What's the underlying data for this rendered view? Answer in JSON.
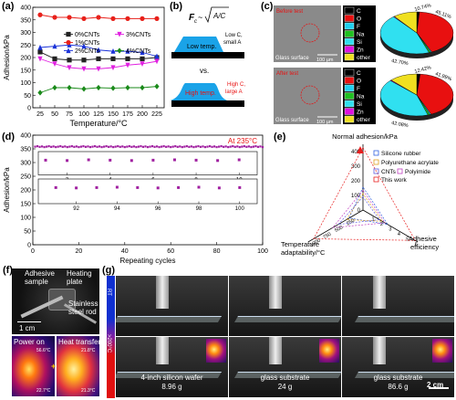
{
  "panels": {
    "a": "(a)",
    "b": "(b)",
    "c": "(c)",
    "d": "(d)",
    "e": "(e)",
    "f": "(f)",
    "g": "(g)"
  },
  "chart_a": {
    "type": "line",
    "ylabel": "Adhesion/kPa",
    "xlabel": "Temperature/°C",
    "x": [
      25,
      50,
      75,
      100,
      125,
      150,
      175,
      200,
      225
    ],
    "xticks": [
      "25",
      "50",
      "75",
      "100",
      "125",
      "150",
      "175",
      "200",
      "225"
    ],
    "ylim": [
      0,
      400
    ],
    "yticks": [
      "0",
      "50",
      "100",
      "150",
      "200",
      "250",
      "300",
      "350",
      "400"
    ],
    "series": [
      {
        "name": "0%CNTs",
        "color": "#222222",
        "marker": "square",
        "values": [
          222,
          195,
          190,
          190,
          195,
          195,
          195,
          195,
          200
        ]
      },
      {
        "name": "1%CNTs",
        "color": "#e8201a",
        "marker": "circle",
        "values": [
          370,
          360,
          360,
          355,
          360,
          355,
          355,
          355,
          355
        ]
      },
      {
        "name": "2%CNTs",
        "color": "#1a32d8",
        "marker": "triangle",
        "values": [
          240,
          245,
          250,
          245,
          230,
          225,
          225,
          220,
          205
        ]
      },
      {
        "name": "3%CNTs",
        "color": "#e020e0",
        "marker": "triangle-down",
        "values": [
          195,
          175,
          160,
          155,
          155,
          160,
          170,
          175,
          185
        ]
      },
      {
        "name": "4%CNTs",
        "color": "#1a8a1a",
        "marker": "diamond",
        "values": [
          60,
          80,
          80,
          75,
          80,
          78,
          80,
          80,
          85
        ]
      }
    ]
  },
  "panel_b": {
    "formula_f": "F",
    "formula_sub": "c",
    "formula_root": "A/C",
    "low": "Low temp.",
    "low_note_1": "Low C,",
    "low_note_2": "small A",
    "vs": "vs.",
    "high": "High temp.",
    "high_note_1": "High C,",
    "high_note_2": "large A"
  },
  "panel_c": {
    "top_label": "Before test",
    "bottom_label": "After test",
    "surface": "Glass surface",
    "scale": "100 µm",
    "legend": [
      {
        "name": "C",
        "color": "#000000"
      },
      {
        "name": "O",
        "color": "#e81010"
      },
      {
        "name": "F",
        "color": "#20d0f0"
      },
      {
        "name": "Na",
        "color": "#20c020"
      },
      {
        "name": "Si",
        "color": "#30e0f0"
      },
      {
        "name": "Zn",
        "color": "#e010e0"
      },
      {
        "name": "other",
        "color": "#f0e020"
      }
    ],
    "top_pie": {
      "values": [
        1.2,
        42.7,
        0.5,
        0.8,
        45.11,
        0.4,
        10.74
      ]
    },
    "bottom_pie": {
      "values": [
        1.5,
        42.08,
        0.6,
        0.9,
        41.99,
        0.5,
        12.42
      ]
    },
    "top_pct_a": "10.74%",
    "top_pct_b": "45.11%",
    "top_pct_c": "42.70%",
    "bottom_pct_a": "12.42%",
    "bottom_pct_b": "41.99%",
    "bottom_pct_c": "42.08%"
  },
  "chart_d": {
    "type": "scatter",
    "ylabel": "Adhesion/kPa",
    "xlabel": "Repeating cycles",
    "annotation": "At 235°C",
    "x_range": [
      0,
      100
    ],
    "xticks": [
      "0",
      "20",
      "40",
      "60",
      "80",
      "100"
    ],
    "ylim": [
      0,
      400
    ],
    "yticks": [
      "0",
      "50",
      "100",
      "150",
      "200",
      "250",
      "300",
      "350",
      "400"
    ],
    "main_value": 358,
    "inset1": {
      "x": [
        1,
        2,
        3,
        4,
        5,
        6,
        7,
        8,
        9,
        10
      ],
      "xticks": [
        "2",
        "4",
        "6",
        "8",
        "10"
      ],
      "values": [
        357,
        356,
        358,
        357,
        356,
        357,
        358,
        357,
        356,
        358
      ]
    },
    "inset2": {
      "x": [
        91,
        92,
        93,
        94,
        95,
        96,
        97,
        98,
        99,
        100
      ],
      "xticks": [
        "92",
        "94",
        "96",
        "98",
        "100"
      ],
      "values": [
        357,
        356,
        357,
        358,
        357,
        356,
        357,
        358,
        356,
        357
      ]
    }
  },
  "chart_e": {
    "type": "radar",
    "axis_top": "Normal adhesion/kPa",
    "axis_left_1": "Temperature",
    "axis_left_2": "adaptability/°C",
    "axis_right_1": "Adhesive",
    "axis_right_2": "efficiency",
    "top_ticks": [
      "0",
      "100",
      "200",
      "300",
      "400"
    ],
    "left_ticks": [
      "250",
      "500",
      "750",
      "1000"
    ],
    "right_ticks": [
      "1",
      "2",
      "3",
      "4",
      "5",
      "6"
    ],
    "legend": [
      {
        "name": "Silicone rubber",
        "color": "#3060e0"
      },
      {
        "name": "Polyurethane acrylate",
        "color": "#e0a020"
      },
      {
        "name": "CNTs",
        "color": "#6060e0"
      },
      {
        "name": "Polyimide",
        "color": "#c040c0"
      },
      {
        "name": "This work",
        "color": "#e82020"
      }
    ]
  },
  "panel_f": {
    "sample": "Adhesive\nsample",
    "plate": "Heating\nplate",
    "rod": "Stainless\nsteel rod",
    "scale": "1 cm",
    "power_on": "Power on",
    "heat_transfer": "Heat transfer",
    "t1": "56.6°C",
    "t2": "22.7°C",
    "t3": "21.8°C",
    "t4": "21.3°C"
  },
  "panel_g": {
    "rt": "RT",
    "hot": ">200°C",
    "items": [
      {
        "label": "4-inch silicon wafer",
        "mass": "8.96 g"
      },
      {
        "label": "glass substrate",
        "mass": "24 g"
      },
      {
        "label": "glass substrate",
        "mass": "86.6 g"
      }
    ],
    "scale": "2 cm"
  }
}
